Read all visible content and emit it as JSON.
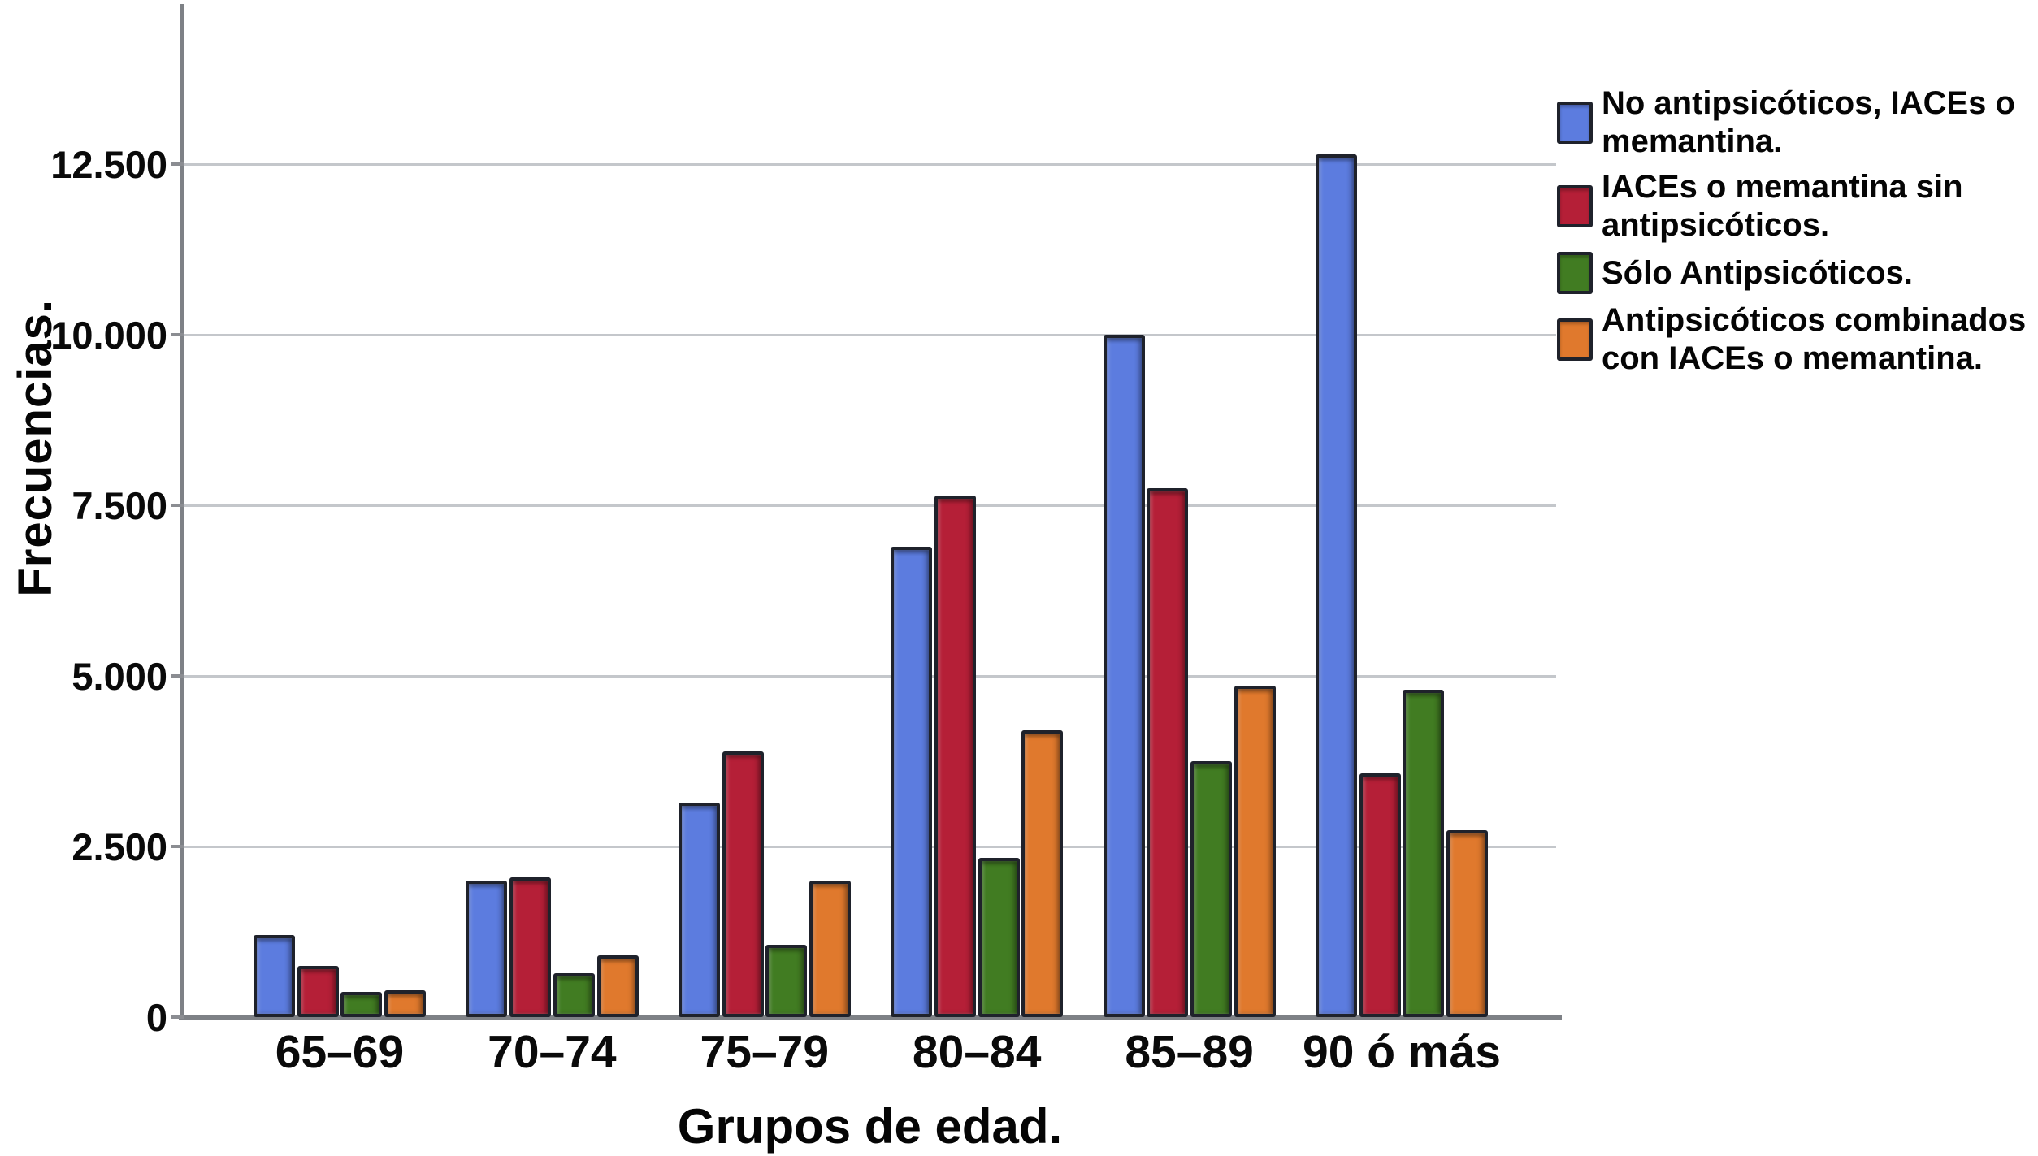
{
  "chart_data": {
    "type": "bar",
    "xlabel": "Grupos de edad.",
    "ylabel": "Frecuencias.",
    "categories": [
      "65–69",
      "70–74",
      "75–79",
      "80–84",
      "85–89",
      "90 ó más"
    ],
    "series": [
      {
        "name": "No antipsicóticos, IACEs o memantina.",
        "color": "#5C7CDF",
        "values": [
          1200,
          2000,
          3150,
          6900,
          10000,
          12650
        ]
      },
      {
        "name": "IACEs o memantina sin antipsicóticos.",
        "color": "#B51F37",
        "values": [
          750,
          2050,
          3900,
          7650,
          7750,
          3570
        ]
      },
      {
        "name": "Sólo Antipsicóticos.",
        "color": "#417C22",
        "values": [
          370,
          640,
          1060,
          2330,
          3750,
          4800
        ]
      },
      {
        "name": "Antipsicóticos combinados con IACEs o memantina.",
        "color": "#E0792D",
        "values": [
          390,
          900,
          2000,
          4200,
          4860,
          2740
        ]
      }
    ],
    "yticks": [
      {
        "value": 0,
        "label": "0"
      },
      {
        "value": 2500,
        "label": "2.500"
      },
      {
        "value": 5000,
        "label": "5.000"
      },
      {
        "value": 7500,
        "label": "7.500"
      },
      {
        "value": 10000,
        "label": "10.000"
      },
      {
        "value": 12500,
        "label": "12.500"
      }
    ],
    "ylim": [
      0,
      14850
    ],
    "grid": "horizontal",
    "legend_position": "right",
    "bar_border_color": "#1F222B",
    "gridline_color": "#C4C7CB",
    "axis_color": "#7E8186",
    "text_color": "#050505"
  }
}
